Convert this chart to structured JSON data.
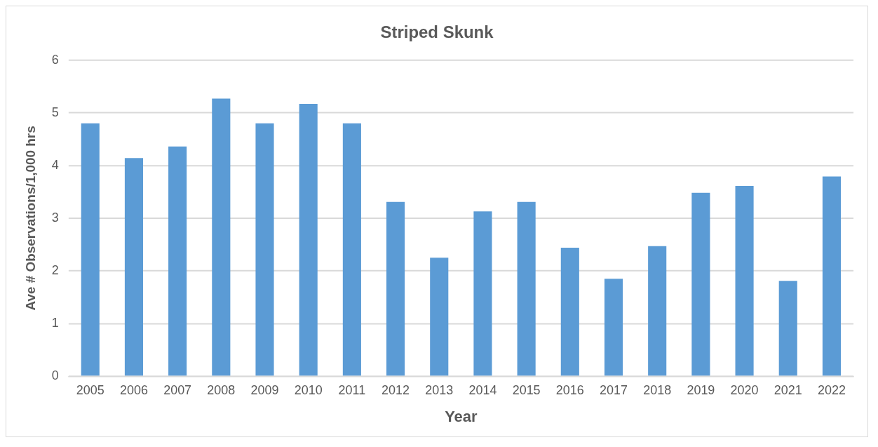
{
  "chart_data": {
    "type": "bar",
    "title": "Striped Skunk",
    "xlabel": "Year",
    "ylabel": "Ave # Observations/1,000 hrs",
    "categories": [
      "2005",
      "2006",
      "2007",
      "2008",
      "2009",
      "2010",
      "2011",
      "2012",
      "2013",
      "2014",
      "2015",
      "2016",
      "2017",
      "2018",
      "2019",
      "2020",
      "2021",
      "2022"
    ],
    "values": [
      4.8,
      4.14,
      4.36,
      5.27,
      4.8,
      5.17,
      4.8,
      3.31,
      2.25,
      3.13,
      3.31,
      2.44,
      1.85,
      2.47,
      3.48,
      3.61,
      1.81,
      3.79
    ],
    "color": "#5b9bd5",
    "ylim": [
      0,
      6
    ],
    "yticks": [
      0,
      1,
      2,
      3,
      4,
      5,
      6
    ],
    "grid": "y"
  }
}
